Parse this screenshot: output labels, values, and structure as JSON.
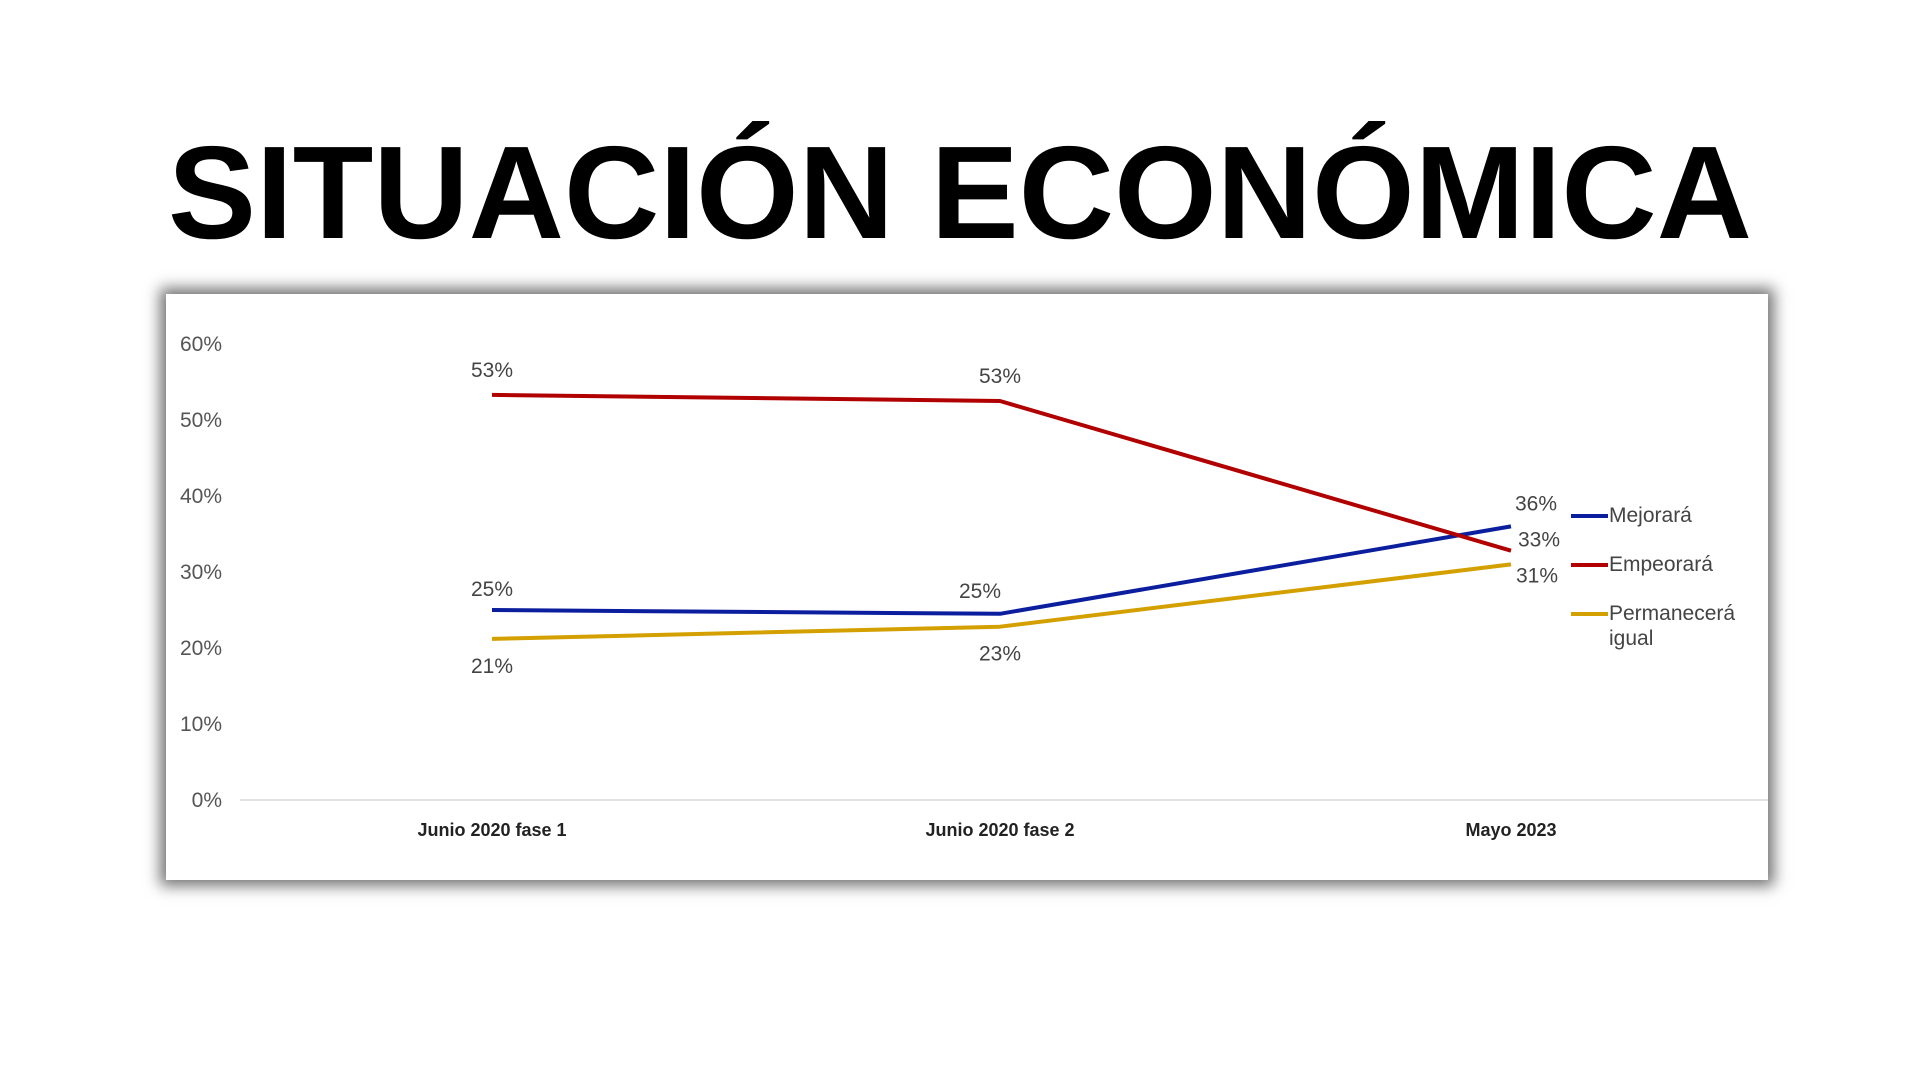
{
  "title": "SITUACIÓN ECONÓMICA",
  "chart_data": {
    "type": "line",
    "categories": [
      "Junio 2020 fase 1",
      "Junio 2020 fase 2",
      "Mayo 2023"
    ],
    "series": [
      {
        "name": "Mejorará",
        "color": "#0b1f9e",
        "values": [
          25,
          24.5,
          36
        ],
        "labels": [
          "25%",
          "25%",
          "36%"
        ]
      },
      {
        "name": "Empeorará",
        "color": "#b00000",
        "values": [
          53.3,
          52.5,
          32.8
        ],
        "labels": [
          "53%",
          "53%",
          "33%"
        ]
      },
      {
        "name": "Permanecerá igual",
        "color": "#d4a000",
        "values": [
          21.2,
          22.8,
          31
        ],
        "labels": [
          "21%",
          "23%",
          "31%"
        ]
      }
    ],
    "yticks": [
      "0%",
      "10%",
      "20%",
      "30%",
      "40%",
      "50%",
      "60%"
    ],
    "ylim": [
      0,
      60
    ],
    "grid": false,
    "legend": "right",
    "legend_lines": [
      [
        "Mejorará"
      ],
      [
        "Empeorará"
      ],
      [
        "Permanecerá",
        "igual"
      ]
    ]
  }
}
